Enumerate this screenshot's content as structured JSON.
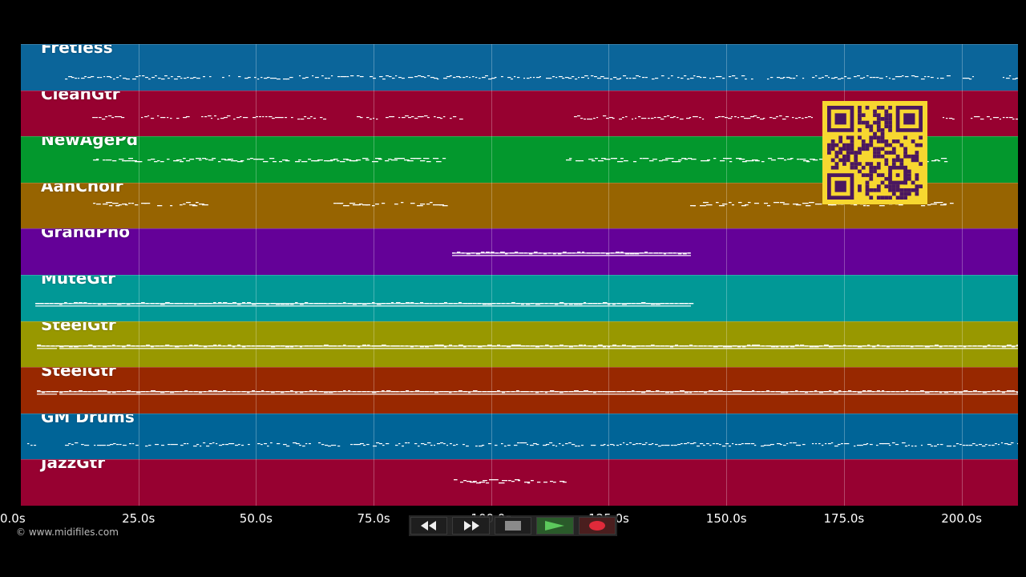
{
  "tracks": [
    {
      "name": "Fretless",
      "color": "#0b659a"
    },
    {
      "name": "CleanGtr",
      "color": "#970130"
    },
    {
      "name": "NewAgePd",
      "color": "#03982d"
    },
    {
      "name": "AahChoir",
      "color": "#976401"
    },
    {
      "name": "GrandPno",
      "color": "#640198"
    },
    {
      "name": "MuteGtr",
      "color": "#019896"
    },
    {
      "name": "SteelGtr",
      "color": "#989800"
    },
    {
      "name": "SteelGtr",
      "color": "#982800"
    },
    {
      "name": "GM Drums",
      "color": "#006497"
    },
    {
      "name": "JazzGtr",
      "color": "#970131"
    }
  ],
  "timeline": {
    "ticks": [
      "0.0s",
      "25.0s",
      "50.0s",
      "75.0s",
      "100.0s",
      "125.0s",
      "150.0s",
      "175.0s",
      "200.0s"
    ],
    "tick_values": [
      0,
      25,
      50,
      75,
      100,
      125,
      150,
      175,
      200
    ],
    "max_seconds": 212
  },
  "copyright": "© www.midifiles.com",
  "transport": {
    "rewind_icon": "rewind-icon",
    "forward_icon": "fast-forward-icon",
    "stop_icon": "stop-icon",
    "play_icon": "play-icon",
    "record_icon": "record-icon",
    "play_color": "#5cc85c",
    "record_color": "#e02a3a"
  },
  "qr_code": {
    "color": "#f7d730",
    "dark": "#4a1760"
  }
}
